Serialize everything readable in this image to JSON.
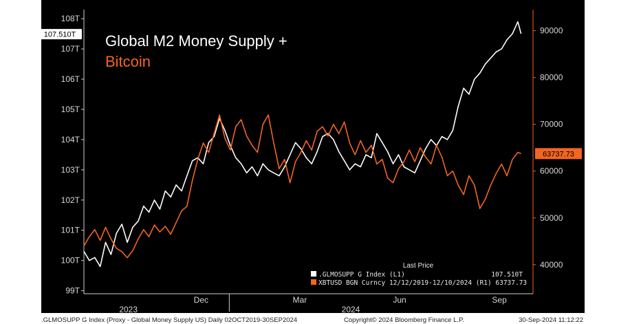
{
  "chart_data": {
    "type": "line",
    "title_line1": "Global M2 Money Supply +",
    "title_line2": "Bitcoin",
    "left_axis": {
      "ticks": [
        "99T",
        "100T",
        "101T",
        "102T",
        "103T",
        "104T",
        "105T",
        "106T",
        "107T",
        "108T"
      ],
      "range": [
        98.9,
        108.3
      ]
    },
    "right_axis": {
      "ticks": [
        "40000",
        "50000",
        "60000",
        "70000",
        "80000",
        "90000"
      ],
      "range": [
        33800,
        94500
      ]
    },
    "x_labels": {
      "months": [
        "Dec",
        "Mar",
        "Jun",
        "Sep"
      ],
      "years": [
        "2023",
        "2024"
      ]
    },
    "series": [
      {
        "name": ".GLMOSUPP G Index",
        "axis": "left",
        "color": "#ffffff",
        "last_value_label": "107.510T",
        "points": [
          [
            "2023-08-20",
            100.3
          ],
          [
            "2023-08-25",
            100.0
          ],
          [
            "2023-08-30",
            100.1
          ],
          [
            "2023-09-04",
            99.8
          ],
          [
            "2023-09-09",
            100.6
          ],
          [
            "2023-09-14",
            100.2
          ],
          [
            "2023-09-19",
            100.9
          ],
          [
            "2023-09-24",
            101.2
          ],
          [
            "2023-09-29",
            100.6
          ],
          [
            "2023-10-04",
            101.1
          ],
          [
            "2023-10-09",
            101.3
          ],
          [
            "2023-10-14",
            101.8
          ],
          [
            "2023-10-19",
            101.6
          ],
          [
            "2023-10-24",
            102.0
          ],
          [
            "2023-10-29",
            101.7
          ],
          [
            "2023-11-03",
            102.3
          ],
          [
            "2023-11-08",
            102.1
          ],
          [
            "2023-11-13",
            102.5
          ],
          [
            "2023-11-18",
            102.3
          ],
          [
            "2023-11-23",
            102.8
          ],
          [
            "2023-11-28",
            103.3
          ],
          [
            "2023-12-03",
            103.4
          ],
          [
            "2023-12-08",
            103.2
          ],
          [
            "2023-12-13",
            103.9
          ],
          [
            "2023-12-18",
            104.1
          ],
          [
            "2023-12-23",
            104.7
          ],
          [
            "2023-12-28",
            104.3
          ],
          [
            "2024-01-02",
            103.8
          ],
          [
            "2024-01-07",
            103.4
          ],
          [
            "2024-01-12",
            103.2
          ],
          [
            "2024-01-17",
            102.9
          ],
          [
            "2024-01-22",
            103.1
          ],
          [
            "2024-01-27",
            102.8
          ],
          [
            "2024-02-01",
            103.2
          ],
          [
            "2024-02-06",
            103.0
          ],
          [
            "2024-02-11",
            102.9
          ],
          [
            "2024-02-16",
            102.8
          ],
          [
            "2024-02-21",
            103.1
          ],
          [
            "2024-02-26",
            103.5
          ],
          [
            "2024-03-02",
            103.9
          ],
          [
            "2024-03-07",
            103.7
          ],
          [
            "2024-03-12",
            103.4
          ],
          [
            "2024-03-17",
            103.2
          ],
          [
            "2024-03-22",
            103.6
          ],
          [
            "2024-03-27",
            104.1
          ],
          [
            "2024-04-01",
            104.2
          ],
          [
            "2024-04-06",
            104.0
          ],
          [
            "2024-04-11",
            103.6
          ],
          [
            "2024-04-16",
            103.3
          ],
          [
            "2024-04-21",
            103.0
          ],
          [
            "2024-04-26",
            103.2
          ],
          [
            "2024-05-01",
            103.1
          ],
          [
            "2024-05-06",
            103.5
          ],
          [
            "2024-05-11",
            103.4
          ],
          [
            "2024-05-16",
            104.2
          ],
          [
            "2024-05-21",
            103.9
          ],
          [
            "2024-05-26",
            103.6
          ],
          [
            "2024-05-31",
            103.2
          ],
          [
            "2024-06-05",
            103.5
          ],
          [
            "2024-06-10",
            103.1
          ],
          [
            "2024-06-15",
            103.0
          ],
          [
            "2024-06-20",
            102.9
          ],
          [
            "2024-06-25",
            103.3
          ],
          [
            "2024-06-30",
            103.7
          ],
          [
            "2024-07-05",
            104.0
          ],
          [
            "2024-07-10",
            103.8
          ],
          [
            "2024-07-15",
            104.1
          ],
          [
            "2024-07-20",
            104.0
          ],
          [
            "2024-07-25",
            104.3
          ],
          [
            "2024-07-30",
            105.1
          ],
          [
            "2024-08-04",
            105.7
          ],
          [
            "2024-08-09",
            105.5
          ],
          [
            "2024-08-14",
            106.0
          ],
          [
            "2024-08-19",
            106.2
          ],
          [
            "2024-08-24",
            106.5
          ],
          [
            "2024-08-29",
            106.7
          ],
          [
            "2024-09-03",
            106.9
          ],
          [
            "2024-09-08",
            107.0
          ],
          [
            "2024-09-13",
            107.3
          ],
          [
            "2024-09-18",
            107.5
          ],
          [
            "2024-09-23",
            107.9
          ],
          [
            "2024-09-26",
            107.5
          ]
        ]
      },
      {
        "name": "XBTUSD BGN Curncy",
        "axis": "right",
        "color": "#f26522",
        "last_value_label": "63737.73",
        "points": [
          [
            "2023-08-20",
            44000
          ],
          [
            "2023-08-25",
            46000
          ],
          [
            "2023-08-30",
            47500
          ],
          [
            "2023-09-04",
            45200
          ],
          [
            "2023-09-09",
            48000
          ],
          [
            "2023-09-14",
            45500
          ],
          [
            "2023-09-19",
            43500
          ],
          [
            "2023-09-24",
            42800
          ],
          [
            "2023-09-29",
            41500
          ],
          [
            "2023-10-04",
            43000
          ],
          [
            "2023-10-09",
            45500
          ],
          [
            "2023-10-14",
            47500
          ],
          [
            "2023-10-19",
            46000
          ],
          [
            "2023-10-24",
            48500
          ],
          [
            "2023-10-29",
            47000
          ],
          [
            "2023-11-03",
            48200
          ],
          [
            "2023-11-08",
            46500
          ],
          [
            "2023-11-13",
            49000
          ],
          [
            "2023-11-18",
            51500
          ],
          [
            "2023-11-23",
            52500
          ],
          [
            "2023-11-28",
            58000
          ],
          [
            "2023-12-03",
            62500
          ],
          [
            "2023-12-08",
            66000
          ],
          [
            "2023-12-13",
            64000
          ],
          [
            "2023-12-18",
            68000
          ],
          [
            "2023-12-23",
            72000
          ],
          [
            "2023-12-28",
            67000
          ],
          [
            "2024-01-02",
            64500
          ],
          [
            "2024-01-07",
            69500
          ],
          [
            "2024-01-12",
            71000
          ],
          [
            "2024-01-17",
            67500
          ],
          [
            "2024-01-22",
            65500
          ],
          [
            "2024-01-27",
            64000
          ],
          [
            "2024-02-01",
            70000
          ],
          [
            "2024-02-06",
            72000
          ],
          [
            "2024-02-11",
            66000
          ],
          [
            "2024-02-16",
            60500
          ],
          [
            "2024-02-21",
            62500
          ],
          [
            "2024-02-26",
            57500
          ],
          [
            "2024-03-02",
            62000
          ],
          [
            "2024-03-07",
            64000
          ],
          [
            "2024-03-12",
            66500
          ],
          [
            "2024-03-17",
            64500
          ],
          [
            "2024-03-22",
            68500
          ],
          [
            "2024-03-27",
            69500
          ],
          [
            "2024-04-01",
            67500
          ],
          [
            "2024-04-06",
            70000
          ],
          [
            "2024-04-11",
            68000
          ],
          [
            "2024-04-16",
            70500
          ],
          [
            "2024-04-21",
            66000
          ],
          [
            "2024-04-26",
            63500
          ],
          [
            "2024-05-01",
            66500
          ],
          [
            "2024-05-06",
            64000
          ],
          [
            "2024-05-11",
            65500
          ],
          [
            "2024-05-16",
            61500
          ],
          [
            "2024-05-21",
            62500
          ],
          [
            "2024-05-26",
            58500
          ],
          [
            "2024-05-31",
            57500
          ],
          [
            "2024-06-05",
            60500
          ],
          [
            "2024-06-10",
            62000
          ],
          [
            "2024-06-15",
            64500
          ],
          [
            "2024-06-20",
            62000
          ],
          [
            "2024-06-25",
            65000
          ],
          [
            "2024-06-30",
            63000
          ],
          [
            "2024-07-05",
            61500
          ],
          [
            "2024-07-10",
            65500
          ],
          [
            "2024-07-15",
            63000
          ],
          [
            "2024-07-20",
            59000
          ],
          [
            "2024-07-25",
            60000
          ],
          [
            "2024-07-30",
            57000
          ],
          [
            "2024-08-04",
            55000
          ],
          [
            "2024-08-09",
            59000
          ],
          [
            "2024-08-14",
            57000
          ],
          [
            "2024-08-19",
            52000
          ],
          [
            "2024-08-24",
            54000
          ],
          [
            "2024-08-29",
            57000
          ],
          [
            "2024-09-03",
            59500
          ],
          [
            "2024-09-08",
            61500
          ],
          [
            "2024-09-13",
            59000
          ],
          [
            "2024-09-18",
            62500
          ],
          [
            "2024-09-23",
            64000
          ],
          [
            "2024-09-26",
            63737.73
          ]
        ]
      }
    ],
    "legend": {
      "header": "Last Price",
      "rows": [
        {
          "label": ".GLMOSUPP G Index (L1)",
          "value": "107.510T",
          "color": "#ffffff"
        },
        {
          "label": "XBTUSD BGN Curncy 12/12/2019-12/10/2024 (R1) 63737.73",
          "value": "",
          "color": "#f26522"
        }
      ],
      "placement": "bottom-right"
    },
    "grid": false
  },
  "footer": {
    "left": ".GLMOSUPP G Index (Proxy - Global Money Supply US)  Daily 02OCT2019-30SEP2024",
    "center": "Copyright© 2024 Bloomberg Finance L.P.",
    "right": "30-Sep-2024 11:12:22"
  }
}
